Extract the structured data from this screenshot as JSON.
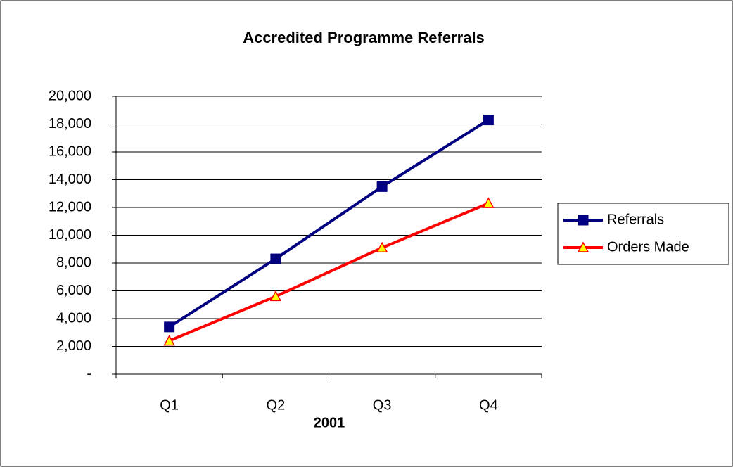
{
  "chart_data": {
    "type": "line",
    "title": "Accredited Programme Referrals",
    "x_label": "2001",
    "categories": [
      "Q1",
      "Q2",
      "Q3",
      "Q4"
    ],
    "series": [
      {
        "name": "Referrals",
        "color": "#000080",
        "marker": "square",
        "marker_fill": "#000080",
        "values": [
          3400,
          8300,
          13500,
          18300
        ]
      },
      {
        "name": "Orders Made",
        "color": "#ff0000",
        "marker": "triangle",
        "marker_fill": "#ffff00",
        "values": [
          2400,
          5600,
          9100,
          12300
        ]
      }
    ],
    "ylim": [
      0,
      20000
    ],
    "yticks": [
      {
        "value": 0,
        "label": "-"
      },
      {
        "value": 2000,
        "label": "2,000"
      },
      {
        "value": 4000,
        "label": "4,000"
      },
      {
        "value": 6000,
        "label": "6,000"
      },
      {
        "value": 8000,
        "label": "8,000"
      },
      {
        "value": 10000,
        "label": "10,000"
      },
      {
        "value": 12000,
        "label": "12,000"
      },
      {
        "value": 14000,
        "label": "14,000"
      },
      {
        "value": 16000,
        "label": "16,000"
      },
      {
        "value": 18000,
        "label": "18,000"
      },
      {
        "value": 20000,
        "label": "20,000"
      }
    ],
    "grid": true,
    "legend": "right"
  }
}
